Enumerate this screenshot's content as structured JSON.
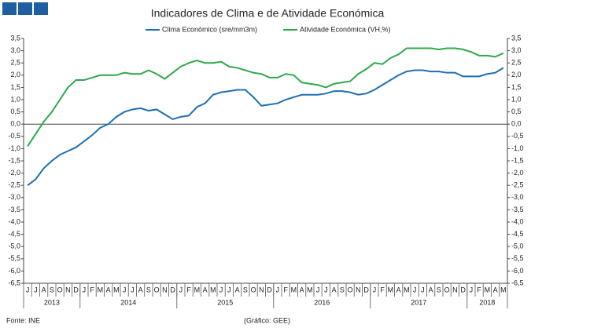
{
  "chart_data": {
    "type": "line",
    "title": "Indicadores de Clima e de Atividade Económica",
    "source": "Fonte: INE",
    "credit": "(Gráfico: GEE)",
    "categories": [
      "J",
      "J",
      "A",
      "S",
      "O",
      "N",
      "D",
      "J",
      "F",
      "M",
      "A",
      "M",
      "J",
      "J",
      "A",
      "S",
      "O",
      "N",
      "D",
      "J",
      "F",
      "M",
      "A",
      "M",
      "J",
      "J",
      "A",
      "S",
      "O",
      "N",
      "D",
      "J",
      "F",
      "M",
      "A",
      "M",
      "J",
      "J",
      "A",
      "S",
      "O",
      "N",
      "D",
      "J",
      "F",
      "M",
      "A",
      "M",
      "J",
      "J",
      "A",
      "S",
      "O",
      "N",
      "D",
      "J",
      "F",
      "M",
      "A",
      "M"
    ],
    "year_labels": [
      "2013",
      "2014",
      "2015",
      "2016",
      "2017",
      "2018"
    ],
    "series": [
      {
        "name": "Clima Económico (sre/mm3m)",
        "color": "#1f6fb4",
        "values": [
          -2.5,
          -2.25,
          -1.8,
          -1.5,
          -1.25,
          -1.1,
          -0.95,
          -0.7,
          -0.45,
          -0.15,
          0.0,
          0.3,
          0.5,
          0.6,
          0.65,
          0.55,
          0.6,
          0.4,
          0.2,
          0.3,
          0.35,
          0.7,
          0.85,
          1.2,
          1.3,
          1.35,
          1.4,
          1.4,
          1.1,
          0.75,
          0.8,
          0.85,
          1.0,
          1.1,
          1.2,
          1.2,
          1.2,
          1.25,
          1.35,
          1.35,
          1.3,
          1.2,
          1.25,
          1.4,
          1.6,
          1.8,
          2.0,
          2.15,
          2.2,
          2.2,
          2.15,
          2.15,
          2.1,
          2.1,
          1.95,
          1.95,
          1.95,
          2.05,
          2.1,
          2.3
        ]
      },
      {
        "name": "Atividade Económica (VH,%)",
        "color": "#2ea84a",
        "values": [
          -0.9,
          -0.4,
          0.1,
          0.5,
          1.0,
          1.5,
          1.8,
          1.8,
          1.9,
          2.0,
          2.0,
          2.0,
          2.1,
          2.05,
          2.05,
          2.2,
          2.05,
          1.85,
          2.1,
          2.35,
          2.5,
          2.6,
          2.5,
          2.5,
          2.55,
          2.35,
          2.3,
          2.2,
          2.1,
          2.05,
          1.9,
          1.9,
          2.05,
          2.0,
          1.7,
          1.65,
          1.6,
          1.5,
          1.65,
          1.7,
          1.75,
          2.05,
          2.25,
          2.5,
          2.45,
          2.7,
          2.85,
          3.1,
          3.1,
          3.1,
          3.1,
          3.05,
          3.1,
          3.1,
          3.05,
          2.95,
          2.8,
          2.8,
          2.75,
          2.9
        ]
      }
    ],
    "ylim": [
      -6.5,
      3.5
    ],
    "yticks": [
      {
        "value": 3.5,
        "label": "3,5"
      },
      {
        "value": 3.0,
        "label": "3,0"
      },
      {
        "value": 2.5,
        "label": "2,5"
      },
      {
        "value": 2.0,
        "label": "2,0"
      },
      {
        "value": 1.5,
        "label": "1,5"
      },
      {
        "value": 1.0,
        "label": "1,0"
      },
      {
        "value": 0.5,
        "label": "0,5"
      },
      {
        "value": 0.0,
        "label": "0,0"
      },
      {
        "value": -0.5,
        "label": "-0,5"
      },
      {
        "value": -1.0,
        "label": "-1,0"
      },
      {
        "value": -1.5,
        "label": "-1,5"
      },
      {
        "value": -2.0,
        "label": "-2,0"
      },
      {
        "value": -2.5,
        "label": "-2,5"
      },
      {
        "value": -3.0,
        "label": "-3,0"
      },
      {
        "value": -3.5,
        "label": "-3,5"
      },
      {
        "value": -4.0,
        "label": "-4,0"
      },
      {
        "value": -4.5,
        "label": "-4,5"
      },
      {
        "value": -5.0,
        "label": "-5,0"
      },
      {
        "value": -5.5,
        "label": "-5,5"
      },
      {
        "value": -6.0,
        "label": "-6,0"
      },
      {
        "value": -6.5,
        "label": "-6,5"
      }
    ],
    "y2lim": [
      -6.5,
      3.5
    ],
    "y2ticks": [
      {
        "value": 3.5,
        "label": "3,5"
      },
      {
        "value": 3.0,
        "label": "3,0"
      },
      {
        "value": 2.5,
        "label": "2,5"
      },
      {
        "value": 2.0,
        "label": "2,0"
      },
      {
        "value": 1.5,
        "label": "1,5"
      },
      {
        "value": 1.0,
        "label": "1,0"
      },
      {
        "value": 0.5,
        "label": "0,5"
      },
      {
        "value": 0.0,
        "label": "0,0"
      },
      {
        "value": -0.5,
        "label": "-0,5"
      },
      {
        "value": -1.0,
        "label": "-1,0"
      },
      {
        "value": -1.5,
        "label": "-1,5"
      },
      {
        "value": -2.0,
        "label": "-2,0"
      },
      {
        "value": -2.5,
        "label": "-2,5"
      },
      {
        "value": -3.0,
        "label": "-3,0"
      },
      {
        "value": -3.5,
        "label": "-3,5"
      },
      {
        "value": -4.0,
        "label": "-4,0"
      },
      {
        "value": -4.5,
        "label": "-4,5"
      },
      {
        "value": -5.0,
        "label": "-5,0"
      },
      {
        "value": -5.5,
        "label": "-5,5"
      },
      {
        "value": -6.0,
        "label": "-6,0"
      },
      {
        "value": -6.5,
        "label": "-6,5"
      }
    ],
    "grid": false
  }
}
